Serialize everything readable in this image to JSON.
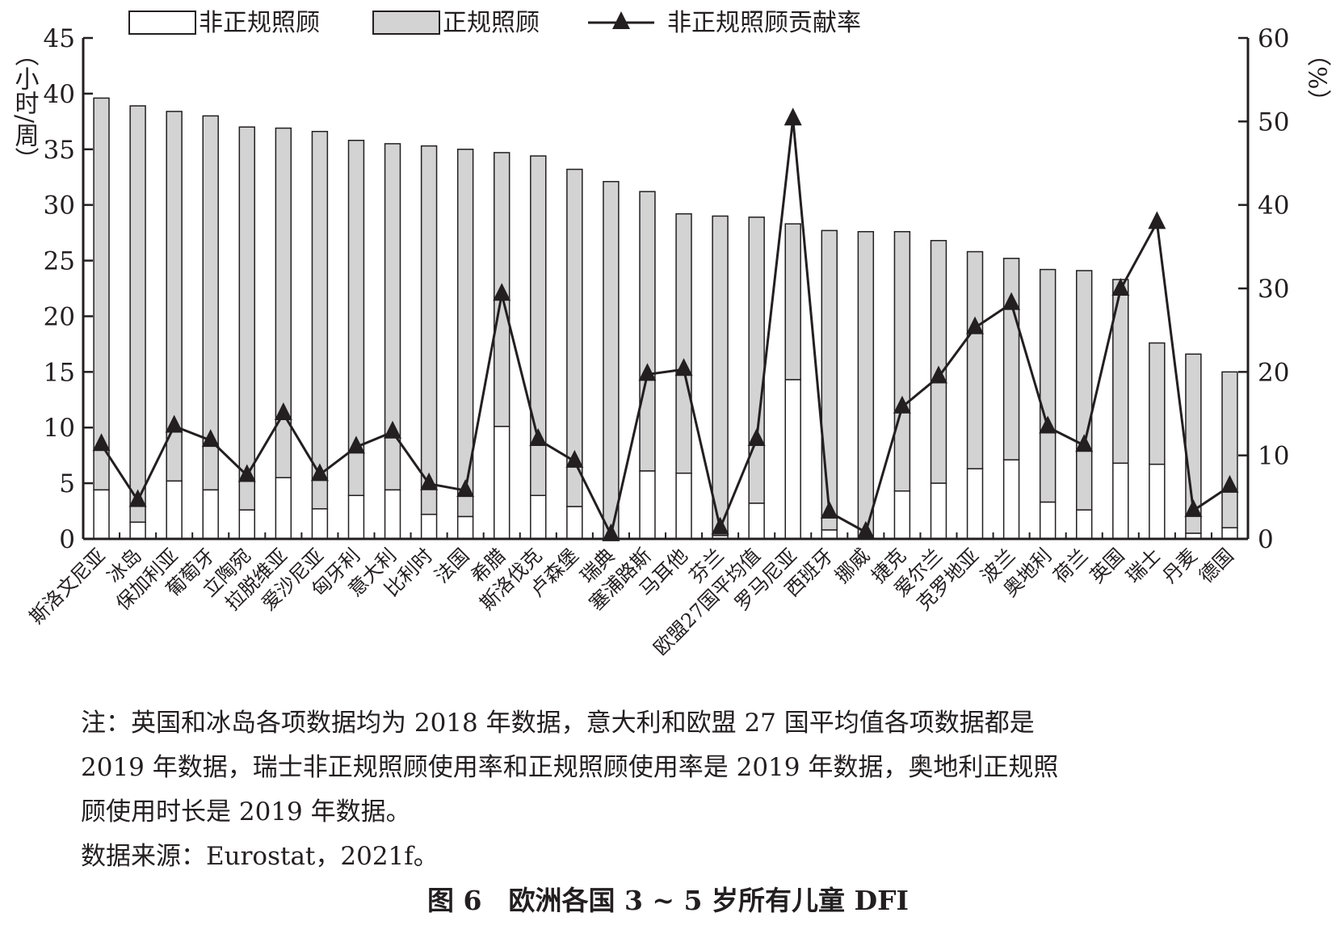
{
  "chart_data": {
    "type": "bar",
    "stacked": true,
    "title": "图 6　欧洲各国 3 ~ 5 岁所有儿童 DFI",
    "ylabel_left": "（小时/周）",
    "ylabel_right": "（%）",
    "ylim_left": [
      0,
      45
    ],
    "ylim_right": [
      0,
      60
    ],
    "yticks_left": [
      0,
      5,
      10,
      15,
      20,
      25,
      30,
      35,
      40,
      45
    ],
    "yticks_right": [
      0,
      10,
      20,
      30,
      40,
      50,
      60
    ],
    "legend": [
      "非正规照顾",
      "正规照顾",
      "非正规照顾贡献率"
    ],
    "legend_placement": "top",
    "categories": [
      "斯洛文尼亚",
      "冰岛",
      "保加利亚",
      "葡萄牙",
      "立陶宛",
      "拉脱维亚",
      "爱沙尼亚",
      "匈牙利",
      "意大利",
      "比利时",
      "法国",
      "希腊",
      "斯洛伐克",
      "卢森堡",
      "瑞典",
      "塞浦路斯",
      "马耳他",
      "芬兰",
      "欧盟27国平均值",
      "罗马尼亚",
      "西班牙",
      "挪威",
      "捷克",
      "爱尔兰",
      "克罗地亚",
      "波兰",
      "奥地利",
      "荷兰",
      "英国",
      "瑞士",
      "丹麦",
      "德国"
    ],
    "series": [
      {
        "name": "非正规照顾",
        "axis": "left",
        "values": [
          4.4,
          1.5,
          5.2,
          4.4,
          2.6,
          5.5,
          2.7,
          3.9,
          4.4,
          2.2,
          2.0,
          10.1,
          3.9,
          2.9,
          0.0,
          6.1,
          5.9,
          0.3,
          3.2,
          14.3,
          0.8,
          0.0,
          4.3,
          5.0,
          6.3,
          7.1,
          3.3,
          2.6,
          6.8,
          6.7,
          0.5,
          1.0
        ]
      },
      {
        "name": "总计(非正规+正规照顾)",
        "axis": "left",
        "values": [
          39.6,
          38.9,
          38.4,
          38.0,
          37.0,
          36.9,
          36.6,
          35.8,
          35.5,
          35.3,
          35.0,
          34.7,
          34.4,
          33.2,
          32.1,
          31.2,
          29.2,
          29.0,
          28.9,
          28.3,
          27.7,
          27.6,
          27.6,
          26.8,
          25.8,
          25.2,
          24.2,
          24.1,
          23.3,
          17.6,
          16.6,
          15.0
        ]
      },
      {
        "name": "非正规照顾贡献率",
        "axis": "right",
        "values": [
          11.3,
          4.6,
          13.5,
          11.8,
          7.6,
          15.0,
          7.7,
          11.0,
          12.8,
          6.6,
          5.8,
          29.3,
          11.9,
          9.3,
          0.5,
          19.7,
          20.3,
          1.3,
          11.9,
          50.3,
          3.2,
          0.8,
          15.8,
          19.4,
          25.3,
          28.2,
          13.4,
          11.2,
          29.9,
          37.9,
          3.4,
          6.3
        ]
      }
    ],
    "colors": {
      "informal": "#ffffff",
      "formal": "#d3d3d4",
      "line": "#231f20"
    }
  },
  "notes": [
    "注：英国和冰岛各项数据均为 2018 年数据，意大利和欧盟 27 国平均值各项数据都是",
    "2019 年数据，瑞士非正规照顾使用率和正规照顾使用率是 2019 年数据，奥地利正规照",
    "顾使用时长是 2019 年数据。",
    "数据来源：Eurostat，2021f。"
  ]
}
